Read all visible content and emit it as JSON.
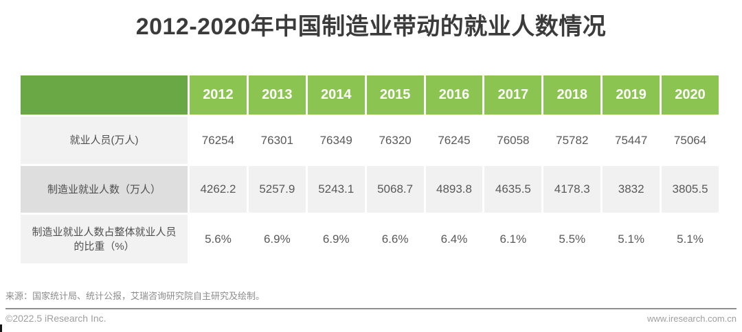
{
  "title": "2012-2020年中国制造业带动的就业人数情况",
  "table": {
    "years": [
      "2012",
      "2013",
      "2014",
      "2015",
      "2016",
      "2017",
      "2018",
      "2019",
      "2020"
    ],
    "rows": [
      {
        "label": "就业人员(万人)",
        "values": [
          "76254",
          "76301",
          "76349",
          "76320",
          "76245",
          "76058",
          "75782",
          "75447",
          "75064"
        ]
      },
      {
        "label": "制造业就业人数（万人）",
        "values": [
          "4262.2",
          "5257.9",
          "5243.1",
          "5068.7",
          "4893.8",
          "4635.5",
          "4178.3",
          "3832",
          "3805.5"
        ]
      },
      {
        "label": "制造业就业人数占整体就业人员的比重（%）",
        "values": [
          "5.6%",
          "6.9%",
          "6.9%",
          "6.6%",
          "6.4%",
          "6.1%",
          "5.5%",
          "5.1%",
          "5.1%"
        ]
      }
    ]
  },
  "source_note": "来源：国家统计局、统计公报，艾瑞咨询研究院自主研究及绘制。",
  "footer": {
    "left": "©2022.5 iResearch Inc.",
    "right": "www.iresearch.com.cn"
  },
  "colors": {
    "header_corner_green": "#6aa846",
    "header_year_green": "#8cc451",
    "header_text": "#ffffff",
    "row_label_bg": "#f2f2f2",
    "row_label_dark_bg": "#dedede",
    "row_shade_bg": "#f1f1f1",
    "value_text": "#595959",
    "title_text": "#3b3b3b",
    "footer_text": "#9e9e9e"
  },
  "chart_data": {
    "type": "table",
    "title": "2012-2020年中国制造业带动的就业人数情况",
    "categories": [
      2012,
      2013,
      2014,
      2015,
      2016,
      2017,
      2018,
      2019,
      2020
    ],
    "series": [
      {
        "name": "就业人员(万人)",
        "values": [
          76254,
          76301,
          76349,
          76320,
          76245,
          76058,
          75782,
          75447,
          75064
        ]
      },
      {
        "name": "制造业就业人数（万人）",
        "values": [
          4262.2,
          5257.9,
          5243.1,
          5068.7,
          4893.8,
          4635.5,
          4178.3,
          3832,
          3805.5
        ]
      },
      {
        "name": "制造业就业人数占整体就业人员的比重（%）",
        "values": [
          5.6,
          6.9,
          6.9,
          6.6,
          6.4,
          6.1,
          5.5,
          5.1,
          5.1
        ]
      }
    ],
    "source": "来源：国家统计局、统计公报，艾瑞咨询研究院自主研究及绘制。"
  }
}
